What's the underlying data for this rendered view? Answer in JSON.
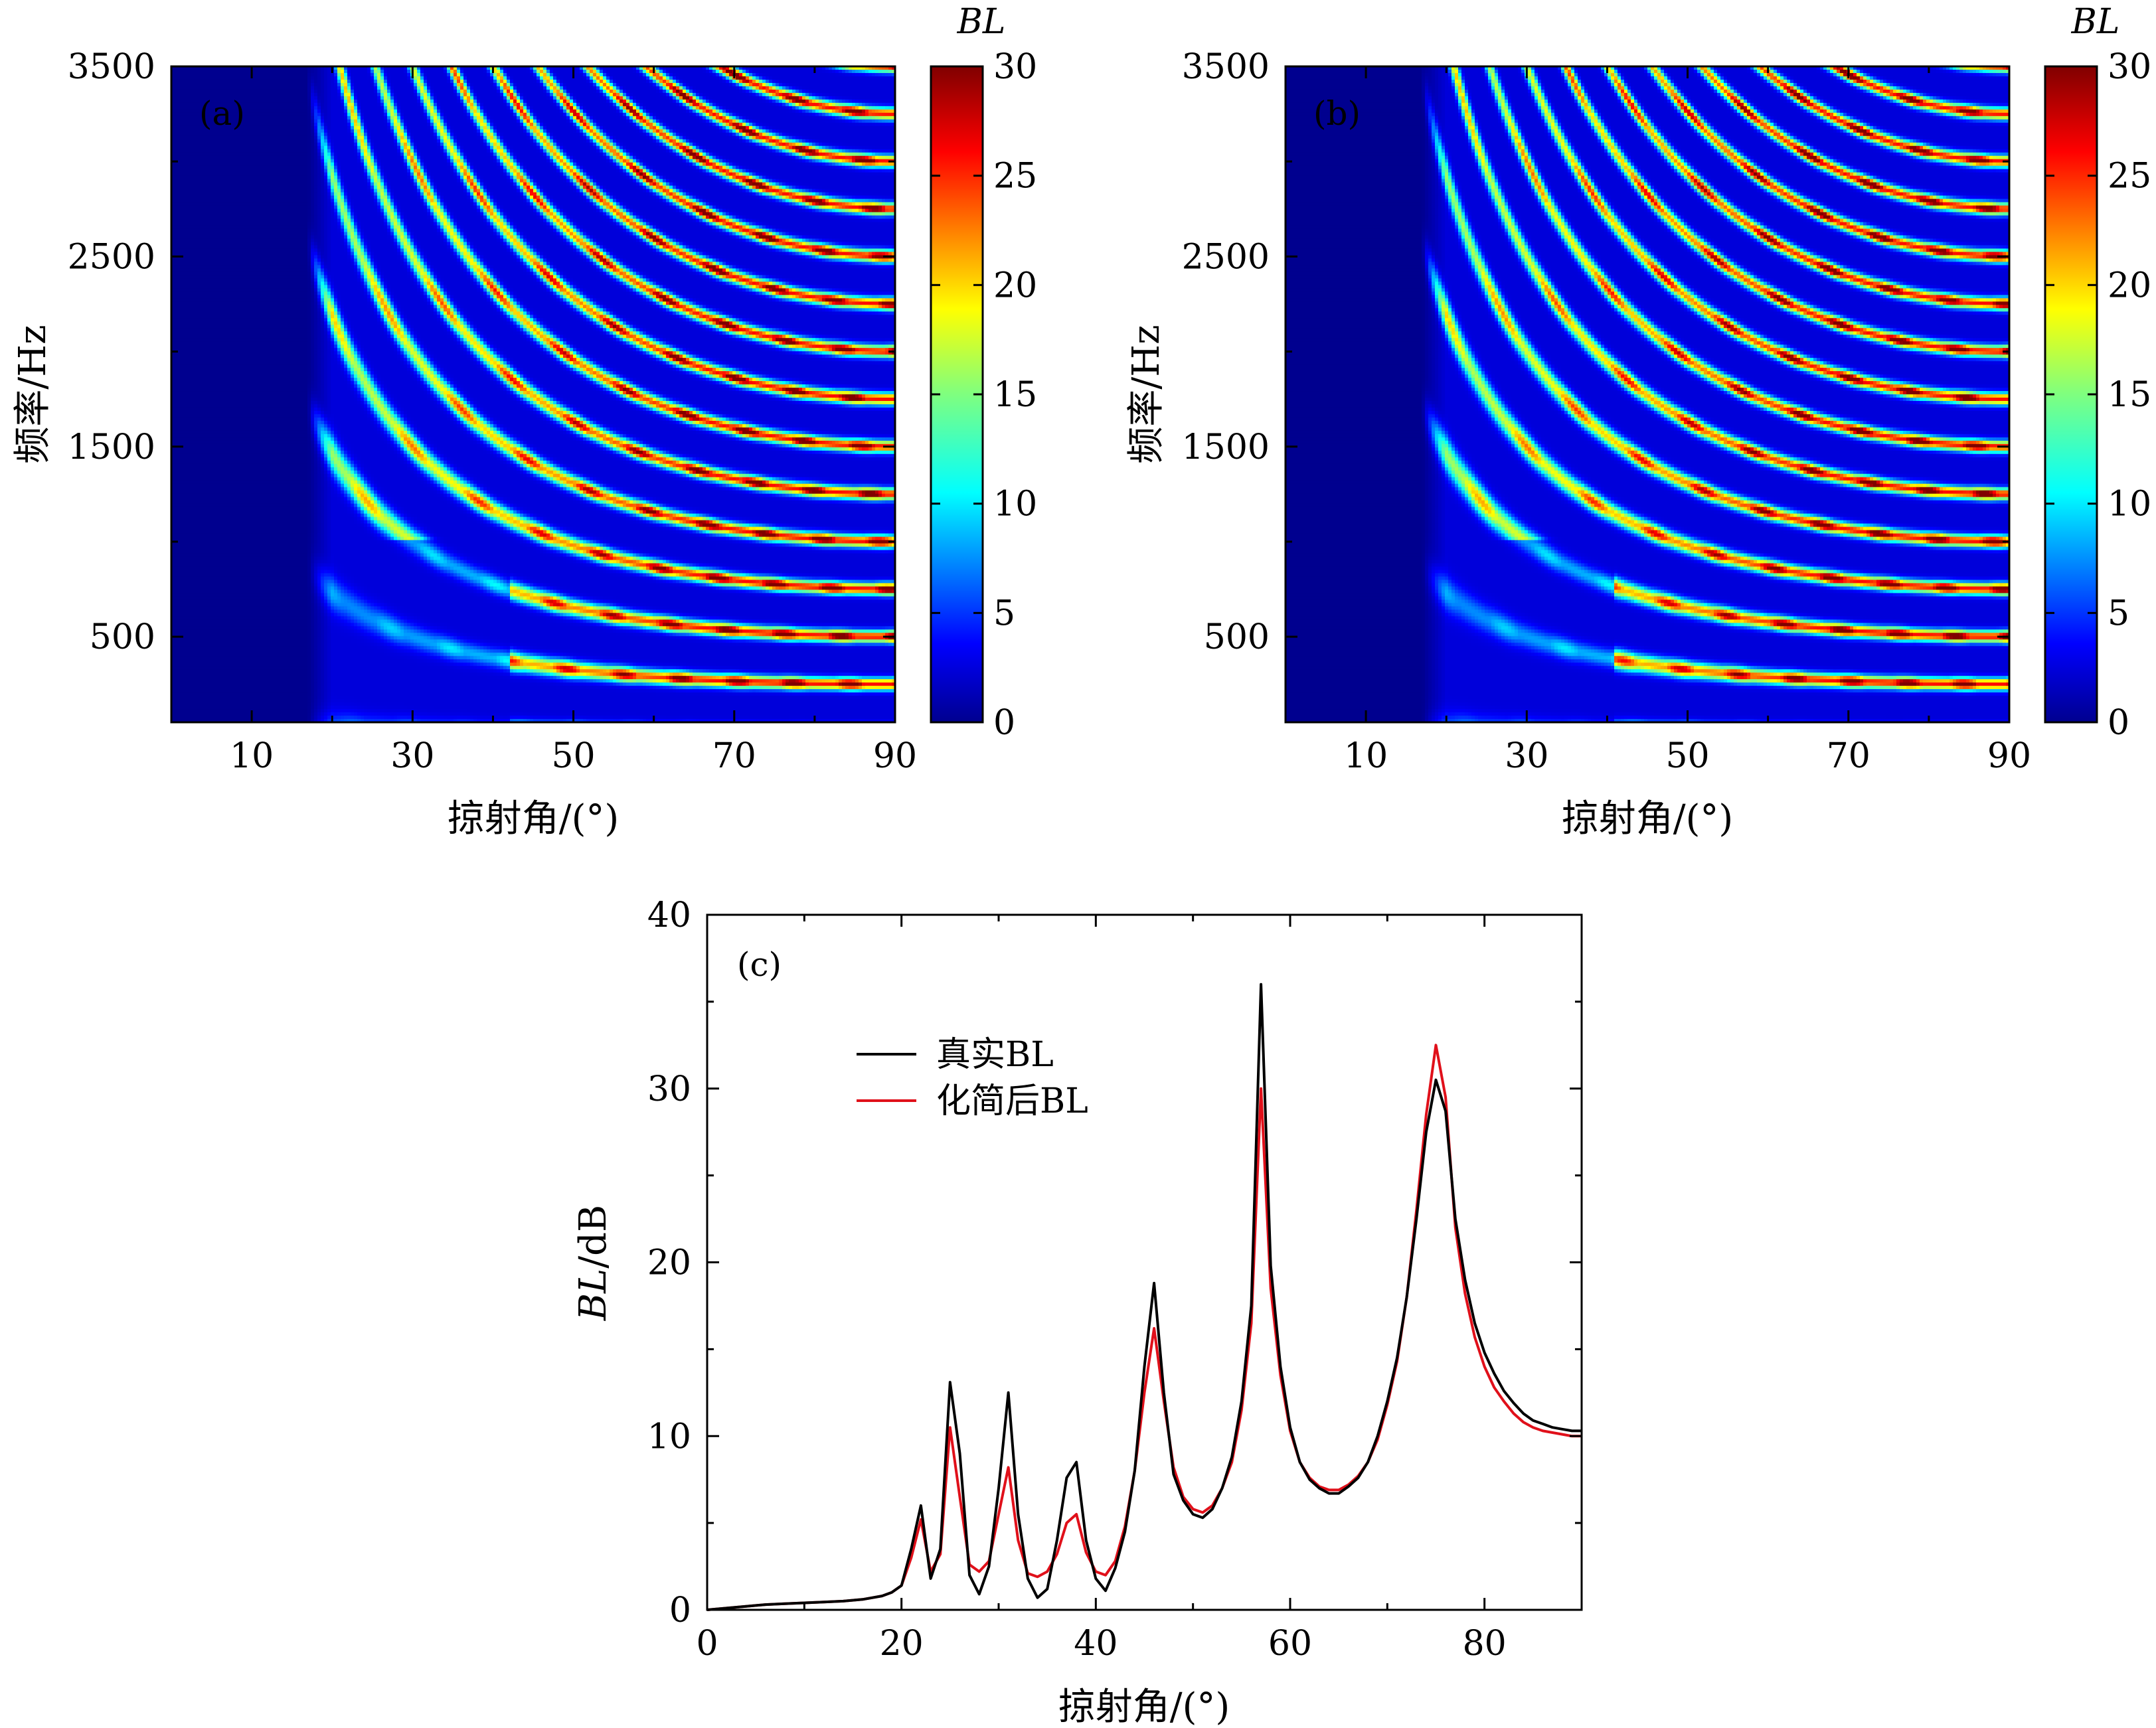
{
  "chart_data": [
    {
      "type": "heatmap",
      "panel_label": "(a)",
      "xlabel": "掠射角/(°)",
      "ylabel": "频率/Hz",
      "xlim": [
        0,
        90
      ],
      "ylim": [
        50,
        3500
      ],
      "xticks": [
        10,
        30,
        50,
        70,
        90
      ],
      "yticks": [
        500,
        1500,
        2500,
        3500
      ],
      "colorbar": {
        "title": "BL",
        "range": [
          0,
          30
        ],
        "ticks": [
          0,
          5,
          10,
          15,
          20,
          25,
          30
        ],
        "colormap": "jet"
      },
      "colors": {
        "low": "#00008f",
        "mid": "#00e0ff",
        "high": "#800000"
      },
      "approx_features": {
        "mode_cutoff_angles_deg": [
          18,
          22,
          27,
          32,
          38,
          44
        ],
        "low_freq_band_edge_angle_deg": 42,
        "band_spacing_hz": 250
      }
    },
    {
      "type": "heatmap",
      "panel_label": "(b)",
      "xlabel": "掠射角/(°)",
      "ylabel": "频率/Hz",
      "xlim": [
        0,
        90
      ],
      "ylim": [
        50,
        3500
      ],
      "xticks": [
        10,
        30,
        50,
        70,
        90
      ],
      "yticks": [
        500,
        1500,
        2500,
        3500
      ],
      "colorbar": {
        "title": "BL",
        "range": [
          0,
          30
        ],
        "ticks": [
          0,
          5,
          10,
          15,
          20,
          25,
          30
        ],
        "colormap": "jet"
      },
      "colors": {
        "low": "#00008f",
        "mid": "#00e0ff",
        "high": "#800000"
      },
      "approx_features": {
        "mode_cutoff_angles_deg": [
          18,
          22,
          27,
          32,
          38,
          44
        ],
        "low_freq_band_edge_angle_deg": 41,
        "band_spacing_hz": 250
      }
    },
    {
      "type": "line",
      "panel_label": "(c)",
      "xlabel": "掠射角/(°)",
      "ylabel": "BL/dB",
      "xlim": [
        0,
        90
      ],
      "ylim": [
        0,
        40
      ],
      "xticks": [
        0,
        20,
        40,
        60,
        80
      ],
      "yticks": [
        0,
        10,
        20,
        30,
        40
      ],
      "legend": {
        "position": "upper-left"
      },
      "series": [
        {
          "name": "真实BL",
          "color": "#000000",
          "x": [
            0,
            2,
            4,
            6,
            8,
            10,
            12,
            14,
            16,
            18,
            19,
            20,
            21,
            22,
            23,
            24,
            25,
            26,
            27,
            28,
            29,
            30,
            31,
            32,
            33,
            34,
            35,
            36,
            37,
            38,
            39,
            40,
            41,
            42,
            43,
            44,
            45,
            46,
            47,
            48,
            49,
            50,
            51,
            52,
            53,
            54,
            55,
            56,
            57,
            58,
            59,
            60,
            61,
            62,
            63,
            64,
            65,
            66,
            67,
            68,
            69,
            70,
            71,
            72,
            73,
            74,
            75,
            76,
            77,
            78,
            79,
            80,
            81,
            82,
            83,
            84,
            85,
            86,
            87,
            88,
            89,
            90
          ],
          "y": [
            0,
            0.1,
            0.2,
            0.3,
            0.35,
            0.4,
            0.45,
            0.5,
            0.6,
            0.8,
            1.0,
            1.4,
            3.5,
            6.0,
            1.8,
            3.5,
            13.1,
            9.0,
            2.0,
            0.9,
            2.5,
            7.0,
            12.5,
            5.5,
            1.8,
            0.7,
            1.2,
            4.0,
            7.6,
            8.5,
            4.0,
            1.8,
            1.1,
            2.4,
            4.5,
            8.0,
            14.0,
            18.8,
            12.5,
            7.8,
            6.3,
            5.5,
            5.3,
            5.8,
            7.0,
            8.8,
            12.0,
            17.5,
            36.0,
            19.8,
            14.0,
            10.5,
            8.5,
            7.5,
            7.0,
            6.7,
            6.7,
            7.1,
            7.6,
            8.5,
            10.0,
            12.0,
            14.5,
            18.0,
            22.5,
            27.5,
            30.5,
            28.7,
            22.5,
            19.0,
            16.5,
            14.8,
            13.6,
            12.6,
            11.9,
            11.3,
            10.9,
            10.7,
            10.5,
            10.4,
            10.3,
            10.3
          ]
        },
        {
          "name": "化简后BL",
          "color": "#e0101a",
          "x": [
            0,
            2,
            4,
            6,
            8,
            10,
            12,
            14,
            16,
            18,
            19,
            20,
            21,
            22,
            23,
            24,
            25,
            26,
            27,
            28,
            29,
            30,
            31,
            32,
            33,
            34,
            35,
            36,
            37,
            38,
            39,
            40,
            41,
            42,
            43,
            44,
            45,
            46,
            47,
            48,
            49,
            50,
            51,
            52,
            53,
            54,
            55,
            56,
            57,
            58,
            59,
            60,
            61,
            62,
            63,
            64,
            65,
            66,
            67,
            68,
            69,
            70,
            71,
            72,
            73,
            74,
            75,
            76,
            77,
            78,
            79,
            80,
            81,
            82,
            83,
            84,
            85,
            86,
            87,
            88,
            89,
            90
          ],
          "y": [
            0,
            0.1,
            0.2,
            0.3,
            0.35,
            0.4,
            0.45,
            0.5,
            0.6,
            0.8,
            1.0,
            1.4,
            3.0,
            5.2,
            2.2,
            3.2,
            10.5,
            6.5,
            2.6,
            2.2,
            2.8,
            5.5,
            8.2,
            4.0,
            2.1,
            1.9,
            2.2,
            3.2,
            5.0,
            5.5,
            3.3,
            2.2,
            2.0,
            2.8,
            4.8,
            8.0,
            12.5,
            16.2,
            12.0,
            8.2,
            6.5,
            5.8,
            5.6,
            6.0,
            7.0,
            8.5,
            11.5,
            16.5,
            30.0,
            18.5,
            13.5,
            10.3,
            8.5,
            7.6,
            7.1,
            6.9,
            6.9,
            7.2,
            7.7,
            8.5,
            9.8,
            11.8,
            14.3,
            18.0,
            23.0,
            28.5,
            32.5,
            29.5,
            22.0,
            18.2,
            15.7,
            14.0,
            12.8,
            12.0,
            11.3,
            10.8,
            10.5,
            10.3,
            10.2,
            10.1,
            10.0,
            10.0
          ]
        }
      ]
    }
  ]
}
